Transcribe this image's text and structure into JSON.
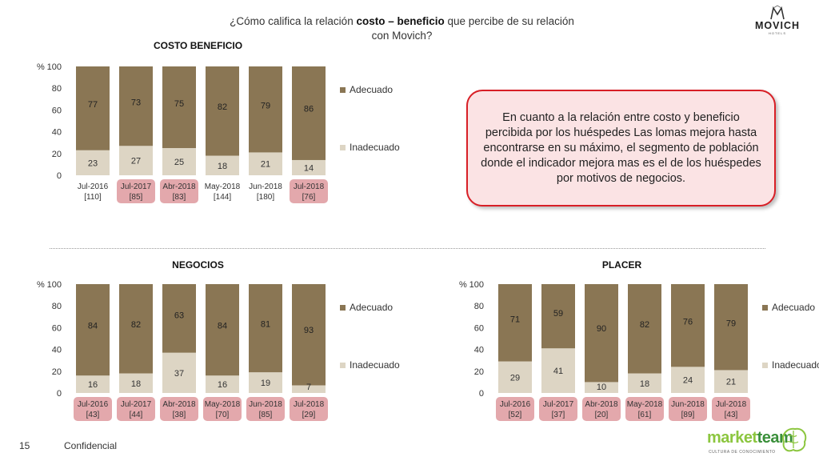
{
  "question": {
    "before": "¿Cómo califica la relación ",
    "bold": "costo – beneficio",
    "after": " que percibe de su relación",
    "line2": "con Movich?"
  },
  "logo": {
    "brand": "MOVICH",
    "sub": "HOTELS"
  },
  "callout": "En cuanto a la relación entre costo y beneficio percibida por los huéspedes Las lomas mejora hasta encontrarse en su máximo, el segmento de población donde el indicador mejora mas es el de los huéspedes por motivos de negocios.",
  "footer": {
    "page": "15",
    "label": "Confidencial"
  },
  "footer_logo": {
    "part1": "market",
    "part2": "team",
    "tagline": "CULTURA DE CONOCIMIENTO"
  },
  "colors": {
    "adecuado": "#8a7654",
    "inadecuado": "#ddd5c4",
    "highlight": "#e3a8ac"
  },
  "chart_data": [
    {
      "id": "costo",
      "type": "bar",
      "stacked": true,
      "title": "COSTO BENEFICIO",
      "ylabel": "%",
      "ylim": [
        0,
        100
      ],
      "yticks": [
        0,
        20,
        40,
        60,
        80,
        100
      ],
      "categories": [
        "Jul-2016",
        "Jul-2017",
        "Abr-2018",
        "May-2018",
        "Jun-2018",
        "Jul-2018"
      ],
      "bases": [
        "[110]",
        "[85]",
        "[83]",
        "[144]",
        "[180]",
        "[76]"
      ],
      "highlighted": [
        1,
        2,
        5
      ],
      "legend_position": "right",
      "series": [
        {
          "name": "Inadecuado",
          "values": [
            23,
            27,
            25,
            18,
            21,
            14
          ]
        },
        {
          "name": "Adecuado",
          "values": [
            77,
            73,
            75,
            82,
            79,
            86
          ]
        }
      ]
    },
    {
      "id": "negocios",
      "type": "bar",
      "stacked": true,
      "title": "NEGOCIOS",
      "ylabel": "%",
      "ylim": [
        0,
        100
      ],
      "yticks": [
        0,
        20,
        40,
        60,
        80,
        100
      ],
      "categories": [
        "Jul-2016",
        "Jul-2017",
        "Abr-2018",
        "May-2018",
        "Jun-2018",
        "Jul-2018"
      ],
      "bases": [
        "[43]",
        "[44]",
        "[38]",
        "[70]",
        "[85]",
        "[29]"
      ],
      "highlighted": [
        0,
        1,
        2,
        3,
        4,
        5
      ],
      "legend_position": "right",
      "series": [
        {
          "name": "Inadecuado",
          "values": [
            16,
            18,
            37,
            16,
            19,
            7
          ]
        },
        {
          "name": "Adecuado",
          "values": [
            84,
            82,
            63,
            84,
            81,
            93
          ]
        }
      ]
    },
    {
      "id": "placer",
      "type": "bar",
      "stacked": true,
      "title": "PLACER",
      "ylabel": "%",
      "ylim": [
        0,
        100
      ],
      "yticks": [
        0,
        20,
        40,
        60,
        80,
        100
      ],
      "categories": [
        "Jul-2016",
        "Jul-2017",
        "Abr-2018",
        "May-2018",
        "Jun-2018",
        "Jul-2018"
      ],
      "bases": [
        "[52]",
        "[37]",
        "[20]",
        "[61]",
        "[89]",
        "[43]"
      ],
      "highlighted": [
        0,
        1,
        2,
        3,
        4,
        5
      ],
      "legend_position": "right",
      "series": [
        {
          "name": "Inadecuado",
          "values": [
            29,
            41,
            10,
            18,
            24,
            21
          ]
        },
        {
          "name": "Adecuado",
          "values": [
            71,
            59,
            90,
            82,
            76,
            79
          ]
        }
      ]
    }
  ]
}
